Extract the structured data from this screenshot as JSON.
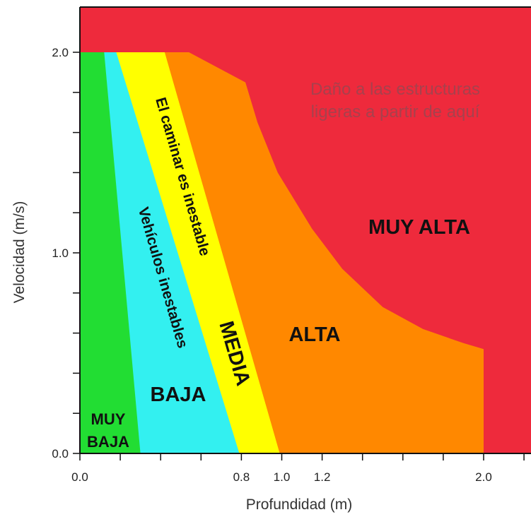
{
  "chart_data": {
    "type": "area",
    "xlabel": "Profundidad (m)",
    "ylabel": "Velocidad (m/s)",
    "xlim": [
      0,
      2.2
    ],
    "ylim": [
      0,
      2.0
    ],
    "x_ticks": [
      0.0,
      0.2,
      0.4,
      0.6,
      0.8,
      1.0,
      1.2,
      1.4,
      1.6,
      1.8,
      2.0,
      2.2
    ],
    "x_tick_labels": [
      {
        "value": 0.0,
        "label": "0.0"
      },
      {
        "value": 0.8,
        "label": "0.8"
      },
      {
        "value": 1.0,
        "label": "1.0"
      },
      {
        "value": 1.2,
        "label": "1.2"
      },
      {
        "value": 2.0,
        "label": "2.0"
      }
    ],
    "y_ticks": [
      0.0,
      0.2,
      0.4,
      0.6,
      0.8,
      1.0,
      1.2,
      1.4,
      1.6,
      1.8,
      2.0
    ],
    "y_tick_labels": [
      {
        "value": 0.0,
        "label": "0.0"
      },
      {
        "value": 1.0,
        "label": "1.0"
      },
      {
        "value": 2.0,
        "label": "2.0"
      }
    ],
    "background_zone": {
      "name": "MUY ALTA",
      "color": "#ee2a3c"
    },
    "zones": [
      {
        "name": "ALTA",
        "color": "#ff8800",
        "polygon": [
          [
            0,
            0
          ],
          [
            2.0,
            0
          ],
          [
            2.0,
            0.52
          ],
          [
            1.9,
            0.55
          ],
          [
            1.7,
            0.62
          ],
          [
            1.5,
            0.73
          ],
          [
            1.3,
            0.92
          ],
          [
            1.15,
            1.12
          ],
          [
            0.98,
            1.4
          ],
          [
            0.88,
            1.65
          ],
          [
            0.82,
            1.85
          ],
          [
            0.54,
            2.0
          ],
          [
            0,
            2.0
          ]
        ]
      },
      {
        "name": "MEDIA",
        "color": "#ffff00",
        "polygon": [
          [
            0,
            0
          ],
          [
            0.99,
            0
          ],
          [
            0.42,
            2.0
          ],
          [
            0,
            2.0
          ]
        ]
      },
      {
        "name": "BAJA",
        "color": "#33f0f0",
        "polygon": [
          [
            0,
            0
          ],
          [
            0.79,
            0
          ],
          [
            0.18,
            2.0
          ],
          [
            0,
            2.0
          ]
        ]
      },
      {
        "name": "MUY BAJA",
        "color": "#22dd33",
        "polygon": [
          [
            0,
            0
          ],
          [
            0.3,
            0
          ],
          [
            0.12,
            2.0
          ],
          [
            0,
            2.0
          ]
        ]
      }
    ],
    "labels": {
      "muy_baja_line1": "MUY",
      "muy_baja_line2": "BAJA",
      "baja": "BAJA",
      "media": "MEDIA",
      "alta": "ALTA",
      "muy_alta": "MUY ALTA",
      "vehiculos": "Vehículos inestables",
      "caminar": "El caminar es inestable",
      "dano_line1": "Daño a las estructuras",
      "dano_line2": "ligeras a partir de aquí"
    }
  }
}
